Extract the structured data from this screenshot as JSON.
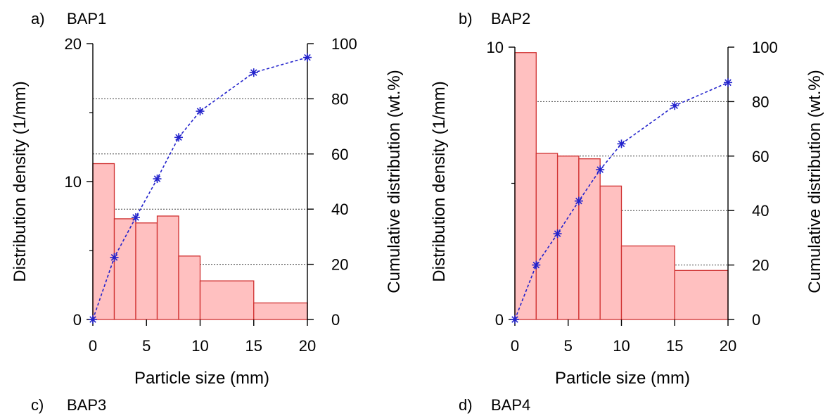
{
  "colors": {
    "bar_fill": "#ffc0c0",
    "bar_stroke": "#d03030",
    "cumulative_line": "#2222cc",
    "axis": "#000000",
    "grid": "#444444"
  },
  "panels": [
    {
      "label": "a)",
      "name": "BAP1"
    },
    {
      "label": "b)",
      "name": "BAP2"
    },
    {
      "label": "c)",
      "name": "BAP3"
    },
    {
      "label": "d)",
      "name": "BAP4"
    }
  ],
  "chart_data": [
    {
      "type": "bar",
      "title": "BAP1",
      "xlabel": "Particle size (mm)",
      "ylabel": "Distribution density (1/mm)",
      "y2label": "Cumulative distribution (wt.%)",
      "xlim": [
        0,
        20
      ],
      "ylim": [
        0,
        20
      ],
      "y2lim": [
        0,
        100
      ],
      "xticks": [
        0,
        5,
        10,
        15,
        20
      ],
      "yticks": [
        0,
        10,
        20
      ],
      "y2ticks": [
        0,
        20,
        40,
        60,
        80,
        100
      ],
      "grid": "horizontal dotted at right-axis ticks",
      "bins": [
        {
          "x0": 0,
          "x1": 2,
          "value": 11.3
        },
        {
          "x0": 2,
          "x1": 4,
          "value": 7.3
        },
        {
          "x0": 4,
          "x1": 6,
          "value": 7.0
        },
        {
          "x0": 6,
          "x1": 8,
          "value": 7.5
        },
        {
          "x0": 8,
          "x1": 10,
          "value": 4.6
        },
        {
          "x0": 10,
          "x1": 15,
          "value": 2.8
        },
        {
          "x0": 15,
          "x1": 20,
          "value": 1.2
        }
      ],
      "cumulative": {
        "x": [
          0,
          2,
          4,
          6,
          8,
          10,
          15,
          20
        ],
        "y": [
          0,
          22.5,
          37,
          51,
          66,
          75.5,
          89.5,
          95
        ]
      }
    },
    {
      "type": "bar",
      "title": "BAP2",
      "xlabel": "Particle size (mm)",
      "ylabel": "Distribution density (1/mm)",
      "y2label": "Cumulative distribution (wt.%)",
      "xlim": [
        0,
        20
      ],
      "ylim": [
        0,
        10
      ],
      "y2lim": [
        0,
        100
      ],
      "xticks": [
        0,
        5,
        10,
        15,
        20
      ],
      "yticks": [
        0,
        10
      ],
      "y2ticks": [
        0,
        20,
        40,
        60,
        80,
        100
      ],
      "grid": "horizontal dotted at right-axis ticks",
      "bins": [
        {
          "x0": 0,
          "x1": 2,
          "value": 9.8
        },
        {
          "x0": 2,
          "x1": 4,
          "value": 6.1
        },
        {
          "x0": 4,
          "x1": 6,
          "value": 6.0
        },
        {
          "x0": 6,
          "x1": 8,
          "value": 5.9
        },
        {
          "x0": 8,
          "x1": 10,
          "value": 4.9
        },
        {
          "x0": 10,
          "x1": 15,
          "value": 2.7
        },
        {
          "x0": 15,
          "x1": 20,
          "value": 1.8
        }
      ],
      "cumulative": {
        "x": [
          0,
          2,
          4,
          6,
          8,
          10,
          15,
          20
        ],
        "y": [
          0,
          20,
          31.5,
          43.5,
          55,
          64.5,
          78.5,
          87
        ]
      }
    }
  ]
}
